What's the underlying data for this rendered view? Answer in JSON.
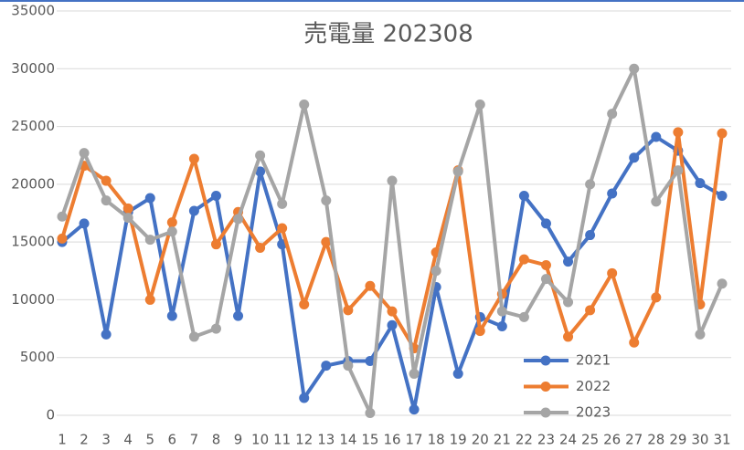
{
  "chart_data": {
    "type": "line",
    "title": "売電量 202308",
    "categories": [
      "1",
      "2",
      "3",
      "4",
      "5",
      "6",
      "7",
      "8",
      "9",
      "10",
      "11",
      "12",
      "13",
      "14",
      "15",
      "16",
      "17",
      "18",
      "19",
      "20",
      "21",
      "22",
      "23",
      "24",
      "25",
      "26",
      "27",
      "28",
      "29",
      "30",
      "31"
    ],
    "series": [
      {
        "name": "2021",
        "color": "#4472c4",
        "values": [
          15000,
          16600,
          7000,
          17600,
          18800,
          8600,
          17700,
          19000,
          8600,
          21100,
          14800,
          1500,
          4300,
          4700,
          4700,
          7800,
          500,
          11100,
          3600,
          8500,
          7700,
          19000,
          16600,
          13300,
          15600,
          19200,
          22300,
          24100,
          22900,
          20100,
          19000
        ]
      },
      {
        "name": "2022",
        "color": "#ed7d31",
        "values": [
          15300,
          21600,
          20300,
          17900,
          10000,
          16700,
          22200,
          14800,
          17600,
          14500,
          16200,
          9600,
          15000,
          9100,
          11200,
          9000,
          5800,
          14100,
          21200,
          7300,
          10500,
          13500,
          13000,
          6800,
          9100,
          12300,
          6300,
          10200,
          24500,
          9600,
          24400
        ]
      },
      {
        "name": "2023",
        "color": "#a5a5a5",
        "values": [
          17200,
          22700,
          18600,
          17100,
          15200,
          15900,
          6800,
          7500,
          17000,
          22500,
          18300,
          26900,
          18600,
          4300,
          200,
          20300,
          3600,
          12500,
          21100,
          26900,
          9000,
          8500,
          11800,
          9800,
          20000,
          26100,
          30000,
          18500,
          21200,
          7000,
          11400
        ]
      }
    ],
    "ylim": [
      0,
      35000
    ],
    "yticks": [
      0,
      5000,
      10000,
      15000,
      20000,
      25000,
      30000,
      35000
    ],
    "grid": true,
    "legend": "bottom-right"
  }
}
